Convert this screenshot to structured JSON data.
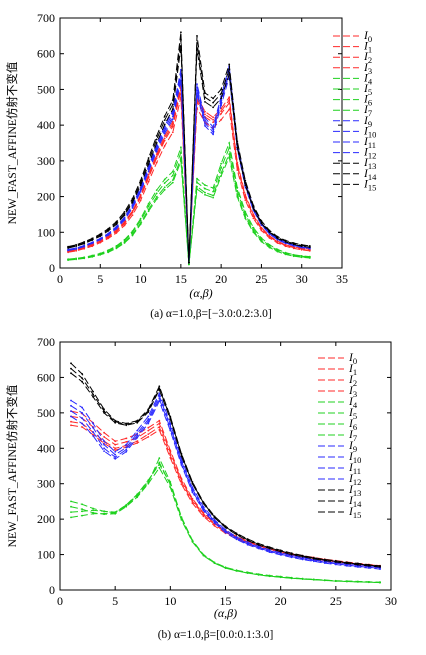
{
  "colors": {
    "red": "#ff2a2a",
    "green": "#1fd11f",
    "blue": "#2a2aff",
    "black": "#000000"
  },
  "chart_data": [
    {
      "type": "line",
      "caption": "(a) α=1.0,β=[−3.0:0.2:3.0]",
      "xlabel": "(α,β)",
      "ylabel": "NEW_FAST_AFFINE仿射不变值",
      "xlim": [
        0,
        35
      ],
      "ylim": [
        0,
        700
      ],
      "xticks": [
        0,
        5,
        10,
        15,
        20,
        25,
        30,
        35
      ],
      "yticks": [
        0,
        100,
        200,
        300,
        400,
        500,
        600,
        700
      ],
      "x": [
        1,
        2,
        3,
        4,
        5,
        6,
        7,
        8,
        9,
        10,
        11,
        12,
        13,
        14,
        15,
        16,
        17,
        18,
        19,
        20,
        21,
        22,
        23,
        24,
        25,
        26,
        27,
        28,
        29,
        30,
        31
      ],
      "series": [
        {
          "name": "I0",
          "color": "red",
          "values": [
            48,
            52,
            58,
            66,
            76,
            89,
            106,
            129,
            160,
            205,
            262,
            319,
            370,
            410,
            515,
            15,
            482,
            438,
            422,
            446,
            478,
            295,
            205,
            150,
            113,
            90,
            75,
            65,
            59,
            55,
            52
          ]
        },
        {
          "name": "I1",
          "color": "red",
          "values": [
            46,
            50,
            56,
            64,
            74,
            86,
            102,
            124,
            155,
            198,
            253,
            308,
            357,
            396,
            497,
            15,
            466,
            423,
            408,
            432,
            462,
            285,
            198,
            145,
            109,
            87,
            73,
            63,
            57,
            53,
            50
          ]
        },
        {
          "name": "I2",
          "color": "red",
          "values": [
            47,
            51,
            57,
            65,
            75,
            87,
            104,
            126,
            157,
            201,
            257,
            313,
            363,
            403,
            505,
            15,
            473,
            430,
            415,
            439,
            470,
            290,
            201,
            147,
            111,
            88,
            74,
            64,
            58,
            54,
            51
          ]
        },
        {
          "name": "I3",
          "color": "red",
          "values": [
            44,
            48,
            54,
            61,
            71,
            83,
            98,
            119,
            148,
            189,
            242,
            295,
            342,
            380,
            478,
            15,
            448,
            407,
            392,
            415,
            444,
            274,
            190,
            139,
            105,
            84,
            70,
            61,
            55,
            51,
            48
          ]
        },
        {
          "name": "I4",
          "color": "green",
          "values": [
            25,
            27,
            30,
            35,
            41,
            50,
            62,
            79,
            103,
            138,
            180,
            218,
            248,
            270,
            338,
            10,
            250,
            232,
            224,
            292,
            350,
            225,
            157,
            113,
            84,
            65,
            52,
            43,
            37,
            34,
            32
          ]
        },
        {
          "name": "I5",
          "color": "green",
          "values": [
            24,
            26,
            29,
            34,
            40,
            48,
            60,
            76,
            99,
            133,
            173,
            209,
            238,
            259,
            324,
            10,
            240,
            222,
            214,
            280,
            336,
            216,
            150,
            108,
            80,
            62,
            50,
            41,
            36,
            33,
            31
          ]
        },
        {
          "name": "I6",
          "color": "green",
          "values": [
            23,
            25,
            28,
            32,
            38,
            46,
            57,
            72,
            94,
            126,
            164,
            199,
            226,
            246,
            308,
            10,
            228,
            211,
            203,
            266,
            319,
            205,
            143,
            103,
            76,
            59,
            47,
            39,
            34,
            31,
            29
          ]
        },
        {
          "name": "I7",
          "color": "green",
          "values": [
            22,
            24,
            27,
            31,
            37,
            44,
            55,
            70,
            91,
            122,
            159,
            193,
            219,
            239,
            299,
            10,
            221,
            205,
            197,
            258,
            310,
            199,
            139,
            100,
            74,
            57,
            46,
            38,
            33,
            30,
            28
          ]
        },
        {
          "name": "I9",
          "color": "blue",
          "values": [
            52,
            56,
            63,
            72,
            83,
            97,
            116,
            142,
            177,
            225,
            285,
            345,
            398,
            440,
            555,
            15,
            515,
            420,
            395,
            480,
            565,
            350,
            240,
            170,
            126,
            100,
            83,
            72,
            65,
            60,
            57
          ]
        },
        {
          "name": "I10",
          "color": "blue",
          "values": [
            51,
            55,
            62,
            71,
            82,
            96,
            114,
            140,
            174,
            221,
            280,
            339,
            391,
            432,
            545,
            15,
            506,
            413,
            388,
            472,
            555,
            344,
            236,
            167,
            124,
            98,
            82,
            71,
            64,
            59,
            56
          ]
        },
        {
          "name": "I11",
          "color": "blue",
          "values": [
            50,
            54,
            61,
            70,
            80,
            94,
            112,
            137,
            171,
            217,
            275,
            333,
            384,
            424,
            535,
            15,
            497,
            405,
            381,
            463,
            545,
            338,
            231,
            164,
            122,
            96,
            80,
            70,
            63,
            58,
            55
          ]
        },
        {
          "name": "I12",
          "color": "blue",
          "values": [
            49,
            53,
            60,
            69,
            79,
            92,
            110,
            134,
            168,
            213,
            270,
            327,
            377,
            417,
            525,
            15,
            488,
            398,
            374,
            455,
            535,
            332,
            227,
            161,
            120,
            95,
            79,
            69,
            62,
            57,
            54
          ]
        },
        {
          "name": "I13",
          "color": "black",
          "values": [
            60,
            65,
            73,
            83,
            95,
            110,
            130,
            157,
            194,
            245,
            308,
            370,
            425,
            470,
            660,
            15,
            650,
            490,
            475,
            500,
            570,
            355,
            245,
            175,
            132,
            105,
            88,
            77,
            70,
            65,
            62
          ]
        },
        {
          "name": "I14",
          "color": "black",
          "values": [
            58,
            63,
            70,
            80,
            92,
            107,
            126,
            152,
            188,
            238,
            300,
            360,
            414,
            458,
            640,
            15,
            630,
            478,
            463,
            488,
            556,
            346,
            239,
            170,
            128,
            102,
            85,
            75,
            68,
            63,
            60
          ]
        },
        {
          "name": "I15",
          "color": "black",
          "values": [
            56,
            61,
            68,
            78,
            89,
            104,
            122,
            148,
            183,
            231,
            291,
            350,
            402,
            445,
            620,
            15,
            612,
            465,
            450,
            475,
            542,
            337,
            232,
            166,
            125,
            100,
            83,
            73,
            66,
            61,
            58
          ]
        }
      ]
    },
    {
      "type": "line",
      "caption": "(b) α=1.0,β=[0.0:0.1:3.0]",
      "xlabel": "(α,β)",
      "ylabel": "NEW_FAST_AFFINE仿射不变值",
      "xlim": [
        0,
        30
      ],
      "ylim": [
        0,
        700
      ],
      "xticks": [
        0,
        5,
        10,
        15,
        20,
        25,
        30
      ],
      "yticks": [
        0,
        100,
        200,
        300,
        400,
        500,
        600,
        700
      ],
      "x": [
        1,
        2,
        3,
        4,
        5,
        6,
        7,
        8,
        9,
        10,
        11,
        12,
        13,
        14,
        15,
        16,
        17,
        18,
        19,
        20,
        21,
        22,
        23,
        24,
        25,
        26,
        27,
        28,
        29
      ],
      "series": [
        {
          "name": "I0",
          "color": "red",
          "values": [
            475,
            470,
            445,
            420,
            400,
            408,
            420,
            440,
            460,
            380,
            305,
            250,
            212,
            185,
            163,
            147,
            134,
            123,
            114,
            106,
            99,
            93,
            88,
            83,
            79,
            75,
            72,
            69,
            66
          ]
        },
        {
          "name": "I1",
          "color": "red",
          "values": [
            490,
            485,
            460,
            432,
            410,
            418,
            430,
            450,
            470,
            388,
            310,
            254,
            215,
            188,
            166,
            149,
            136,
            125,
            116,
            108,
            101,
            95,
            90,
            85,
            81,
            77,
            74,
            71,
            68
          ]
        },
        {
          "name": "I2",
          "color": "red",
          "values": [
            505,
            498,
            472,
            444,
            420,
            428,
            440,
            458,
            478,
            394,
            315,
            258,
            218,
            190,
            168,
            151,
            138,
            127,
            118,
            110,
            103,
            97,
            92,
            87,
            83,
            79,
            75,
            72,
            69
          ]
        },
        {
          "name": "I3",
          "color": "red",
          "values": [
            465,
            460,
            438,
            414,
            395,
            403,
            415,
            432,
            452,
            373,
            299,
            245,
            208,
            181,
            160,
            144,
            131,
            120,
            111,
            103,
            96,
            90,
            85,
            80,
            76,
            72,
            69,
            66,
            63
          ]
        },
        {
          "name": "I4",
          "color": "green",
          "values": [
            250,
            242,
            230,
            222,
            218,
            240,
            270,
            310,
            355,
            300,
            205,
            140,
            100,
            78,
            64,
            56,
            50,
            45,
            41,
            38,
            35,
            32,
            30,
            28,
            26,
            25,
            24,
            23,
            22
          ]
        },
        {
          "name": "I5",
          "color": "green",
          "values": [
            235,
            228,
            218,
            214,
            215,
            235,
            262,
            300,
            345,
            290,
            198,
            136,
            97,
            76,
            62,
            54,
            48,
            43,
            39,
            36,
            33,
            31,
            29,
            27,
            25,
            24,
            23,
            22,
            21
          ]
        },
        {
          "name": "I6",
          "color": "green",
          "values": [
            220,
            222,
            225,
            222,
            220,
            240,
            268,
            308,
            360,
            298,
            202,
            138,
            98,
            76,
            62,
            54,
            48,
            43,
            39,
            36,
            33,
            31,
            29,
            27,
            25,
            24,
            23,
            22,
            21
          ]
        },
        {
          "name": "I7",
          "color": "green",
          "values": [
            205,
            210,
            215,
            216,
            218,
            238,
            265,
            303,
            372,
            305,
            206,
            140,
            99,
            77,
            63,
            55,
            49,
            44,
            40,
            37,
            34,
            32,
            30,
            28,
            26,
            25,
            24,
            23,
            22
          ]
        },
        {
          "name": "I9",
          "color": "blue",
          "values": [
            535,
            515,
            470,
            420,
            390,
            410,
            450,
            490,
            555,
            470,
            370,
            290,
            235,
            198,
            170,
            150,
            135,
            123,
            113,
            105,
            98,
            92,
            87,
            82,
            78,
            74,
            71,
            68,
            65
          ]
        },
        {
          "name": "I10",
          "color": "blue",
          "values": [
            520,
            500,
            458,
            410,
            382,
            402,
            442,
            482,
            548,
            463,
            364,
            285,
            231,
            195,
            167,
            147,
            132,
            121,
            111,
            103,
            96,
            90,
            85,
            80,
            76,
            72,
            69,
            66,
            63
          ]
        },
        {
          "name": "I11",
          "color": "blue",
          "values": [
            505,
            485,
            446,
            400,
            375,
            396,
            436,
            476,
            540,
            456,
            358,
            280,
            227,
            192,
            165,
            145,
            130,
            119,
            109,
            101,
            94,
            88,
            83,
            78,
            74,
            70,
            67,
            64,
            61
          ]
        },
        {
          "name": "I12",
          "color": "blue",
          "values": [
            490,
            470,
            435,
            392,
            370,
            390,
            430,
            470,
            533,
            450,
            353,
            276,
            224,
            189,
            162,
            143,
            128,
            117,
            107,
            99,
            92,
            86,
            81,
            76,
            72,
            68,
            65,
            62,
            59
          ]
        },
        {
          "name": "I13",
          "color": "black",
          "values": [
            640,
            610,
            560,
            510,
            478,
            470,
            478,
            510,
            575,
            490,
            385,
            305,
            248,
            208,
            180,
            160,
            144,
            131,
            121,
            112,
            104,
            97,
            91,
            86,
            82,
            78,
            75,
            71,
            68
          ]
        },
        {
          "name": "I14",
          "color": "black",
          "values": [
            625,
            598,
            552,
            505,
            475,
            467,
            475,
            506,
            570,
            486,
            382,
            302,
            246,
            206,
            178,
            158,
            142,
            129,
            119,
            110,
            102,
            96,
            90,
            85,
            81,
            77,
            73,
            70,
            67
          ]
        },
        {
          "name": "I15",
          "color": "black",
          "values": [
            612,
            588,
            545,
            500,
            472,
            465,
            472,
            502,
            565,
            482,
            378,
            300,
            244,
            204,
            176,
            156,
            140,
            127,
            117,
            108,
            100,
            94,
            88,
            83,
            79,
            75,
            71,
            68,
            65
          ]
        }
      ]
    }
  ]
}
